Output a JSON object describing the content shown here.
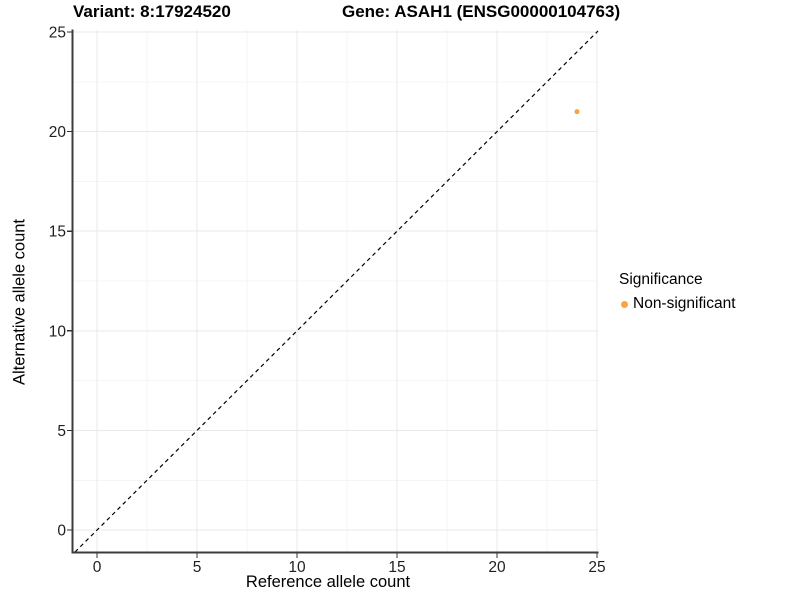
{
  "header": {
    "variant_title": "Variant: 8:17924520",
    "gene_title": "Gene: ASAH1 (ENSG00000104763)"
  },
  "chart_data": {
    "type": "scatter",
    "title": "Variant: 8:17924520    Gene: ASAH1 (ENSG00000104763)",
    "xlabel": "Reference allele count",
    "ylabel": "Alternative allele count",
    "xlim": [
      -1.2,
      25.05
    ],
    "ylim": [
      -1.1,
      25.1
    ],
    "x_ticks": [
      0,
      5,
      10,
      15,
      20,
      25
    ],
    "y_ticks": [
      0,
      5,
      10,
      15,
      20,
      25
    ],
    "grid": "major and minor gridlines on white panel",
    "identity_line": {
      "slope": 1,
      "intercept": 0,
      "style": "dashed",
      "color": "#000000"
    },
    "series": [
      {
        "name": "Non-significant",
        "color": "#F9A43C",
        "points": [
          {
            "x": 24,
            "y": 21
          }
        ]
      }
    ],
    "legend": {
      "title": "Significance",
      "position": "right",
      "items": [
        {
          "label": "Non-significant",
          "color": "#F9A43C"
        }
      ]
    }
  },
  "colors": {
    "background": "#FFFFFF",
    "grid_major": "#E9E9E9",
    "grid_minor": "#F4F4F4",
    "axis_line": "#3C3C3C",
    "tick_mark": "#333333",
    "tick_label": "#1F1F1F",
    "point_orange": "#F9A43C"
  }
}
